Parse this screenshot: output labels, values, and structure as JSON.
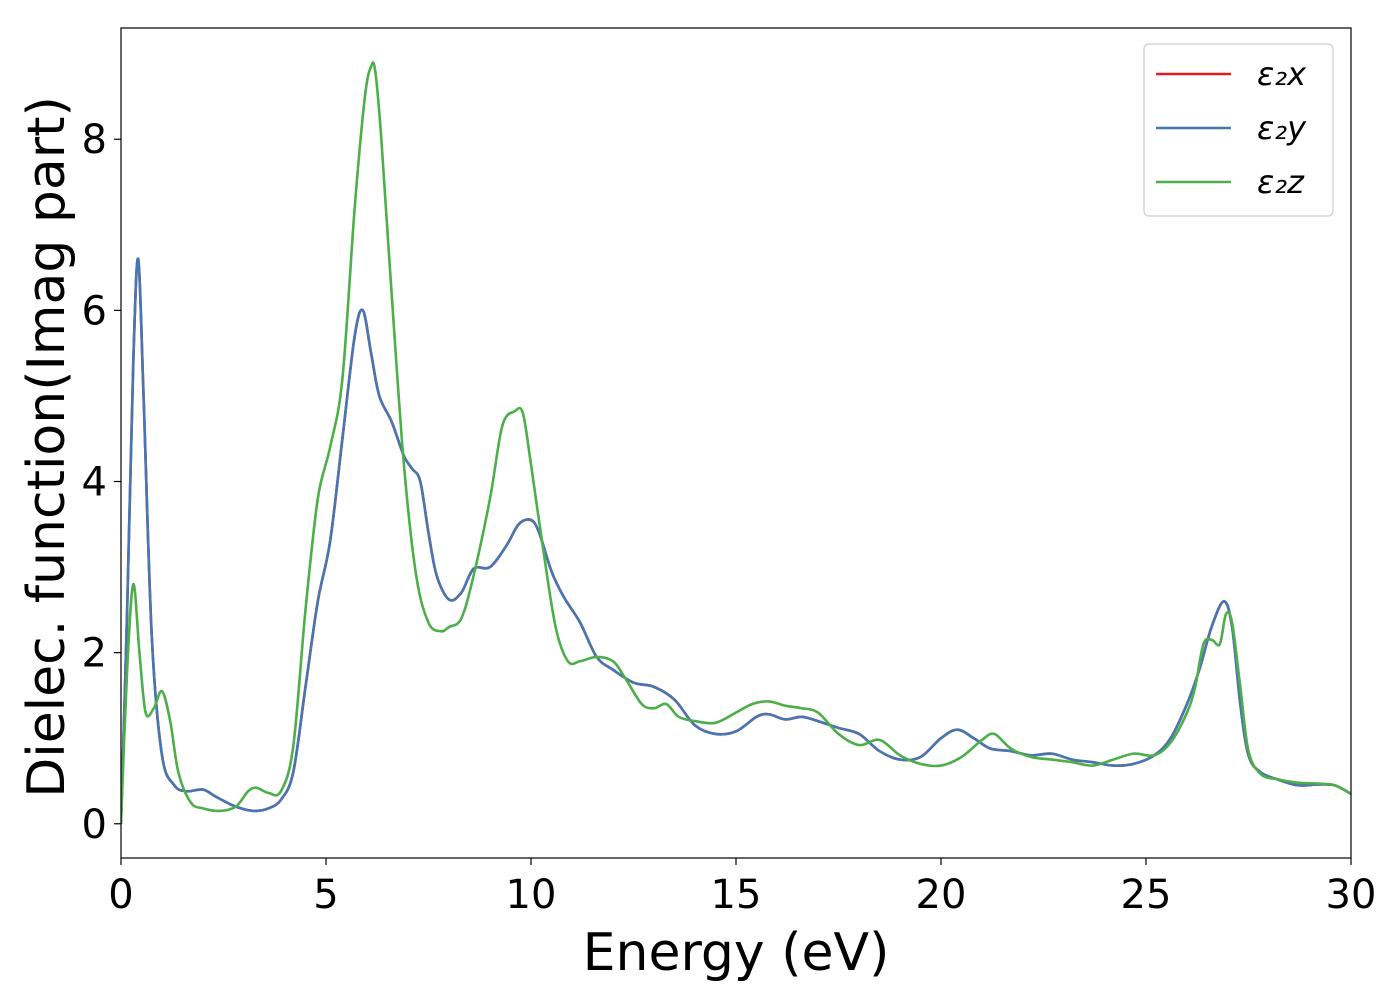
{
  "chart_data": {
    "type": "line",
    "title": "",
    "xlabel": "Energy (eV)",
    "ylabel": "Dielec. function(Imag part)",
    "xlim": [
      0,
      30
    ],
    "ylim": [
      -0.4,
      9.3
    ],
    "xticks": [
      0,
      5,
      10,
      15,
      20,
      25,
      30
    ],
    "yticks": [
      0,
      2,
      4,
      6,
      8
    ],
    "grid": false,
    "legend_position": "top-right",
    "series": [
      {
        "name": "ε₂x",
        "color": "#e41a1c",
        "x": [
          0,
          0.15,
          0.3,
          0.42,
          0.55,
          0.75,
          1.0,
          1.3,
          1.6,
          2.0,
          2.3,
          2.7,
          3.0,
          3.3,
          3.6,
          3.9,
          4.2,
          4.5,
          4.8,
          5.1,
          5.4,
          5.7,
          5.9,
          6.1,
          6.3,
          6.6,
          6.9,
          7.1,
          7.3,
          7.5,
          7.7,
          8.0,
          8.3,
          8.6,
          9.0,
          9.4,
          9.7,
          10.0,
          10.2,
          10.5,
          10.8,
          11.2,
          11.6,
          12.0,
          12.5,
          13.0,
          13.5,
          14.0,
          14.5,
          15.0,
          15.5,
          15.8,
          16.2,
          16.6,
          17.0,
          17.5,
          18.0,
          18.5,
          19.0,
          19.5,
          20.0,
          20.4,
          20.8,
          21.2,
          21.7,
          22.2,
          22.7,
          23.2,
          23.7,
          24.2,
          24.7,
          25.2,
          25.6,
          26.0,
          26.3,
          26.6,
          26.9,
          27.1,
          27.3,
          27.5,
          27.8,
          28.2,
          28.7,
          29.2,
          29.6,
          30.0
        ],
        "y": [
          0.0,
          2.5,
          5.4,
          6.6,
          5.0,
          2.2,
          0.8,
          0.45,
          0.38,
          0.4,
          0.32,
          0.22,
          0.17,
          0.15,
          0.18,
          0.28,
          0.6,
          1.6,
          2.6,
          3.3,
          4.5,
          5.7,
          6.0,
          5.5,
          5.0,
          4.7,
          4.3,
          4.15,
          4.0,
          3.4,
          2.9,
          2.62,
          2.7,
          2.98,
          3.0,
          3.25,
          3.5,
          3.55,
          3.4,
          2.95,
          2.65,
          2.35,
          1.95,
          1.8,
          1.65,
          1.6,
          1.45,
          1.15,
          1.05,
          1.08,
          1.25,
          1.28,
          1.22,
          1.25,
          1.2,
          1.12,
          1.05,
          0.85,
          0.75,
          0.78,
          1.0,
          1.1,
          1.0,
          0.88,
          0.85,
          0.8,
          0.82,
          0.75,
          0.72,
          0.68,
          0.7,
          0.8,
          1.0,
          1.4,
          1.8,
          2.3,
          2.6,
          2.3,
          1.4,
          0.8,
          0.6,
          0.52,
          0.45,
          0.46,
          0.45,
          0.35
        ]
      },
      {
        "name": "ε₂y",
        "color": "#4477b4",
        "x": [
          0,
          0.15,
          0.3,
          0.42,
          0.55,
          0.75,
          1.0,
          1.3,
          1.6,
          2.0,
          2.3,
          2.7,
          3.0,
          3.3,
          3.6,
          3.9,
          4.2,
          4.5,
          4.8,
          5.1,
          5.4,
          5.7,
          5.9,
          6.1,
          6.3,
          6.6,
          6.9,
          7.1,
          7.3,
          7.5,
          7.7,
          8.0,
          8.3,
          8.6,
          9.0,
          9.4,
          9.7,
          10.0,
          10.2,
          10.5,
          10.8,
          11.2,
          11.6,
          12.0,
          12.5,
          13.0,
          13.5,
          14.0,
          14.5,
          15.0,
          15.5,
          15.8,
          16.2,
          16.6,
          17.0,
          17.5,
          18.0,
          18.5,
          19.0,
          19.5,
          20.0,
          20.4,
          20.8,
          21.2,
          21.7,
          22.2,
          22.7,
          23.2,
          23.7,
          24.2,
          24.7,
          25.2,
          25.6,
          26.0,
          26.3,
          26.6,
          26.9,
          27.1,
          27.3,
          27.5,
          27.8,
          28.2,
          28.7,
          29.2,
          29.6,
          30.0
        ],
        "y": [
          0.0,
          2.5,
          5.4,
          6.6,
          5.0,
          2.2,
          0.8,
          0.45,
          0.38,
          0.4,
          0.32,
          0.22,
          0.17,
          0.15,
          0.18,
          0.28,
          0.6,
          1.6,
          2.6,
          3.3,
          4.5,
          5.7,
          6.0,
          5.5,
          5.0,
          4.7,
          4.3,
          4.15,
          4.0,
          3.4,
          2.9,
          2.62,
          2.7,
          2.98,
          3.0,
          3.25,
          3.5,
          3.55,
          3.4,
          2.95,
          2.65,
          2.35,
          1.95,
          1.8,
          1.65,
          1.6,
          1.45,
          1.15,
          1.05,
          1.08,
          1.25,
          1.28,
          1.22,
          1.25,
          1.2,
          1.12,
          1.05,
          0.85,
          0.75,
          0.78,
          1.0,
          1.1,
          1.0,
          0.88,
          0.85,
          0.8,
          0.82,
          0.75,
          0.72,
          0.68,
          0.7,
          0.8,
          1.0,
          1.4,
          1.8,
          2.3,
          2.6,
          2.3,
          1.4,
          0.8,
          0.6,
          0.52,
          0.45,
          0.46,
          0.45,
          0.35
        ]
      },
      {
        "name": "ε₂z",
        "color": "#4daf4a",
        "x": [
          0,
          0.15,
          0.3,
          0.45,
          0.6,
          0.8,
          1.0,
          1.2,
          1.4,
          1.7,
          2.0,
          2.4,
          2.8,
          3.1,
          3.3,
          3.6,
          3.9,
          4.2,
          4.5,
          4.8,
          5.1,
          5.4,
          5.7,
          5.95,
          6.1,
          6.2,
          6.35,
          6.6,
          6.9,
          7.2,
          7.5,
          7.8,
          8.0,
          8.3,
          8.6,
          9.0,
          9.3,
          9.6,
          9.8,
          10.0,
          10.3,
          10.6,
          10.9,
          11.2,
          11.6,
          12.0,
          12.3,
          12.7,
          13.0,
          13.3,
          13.6,
          14.0,
          14.5,
          15.0,
          15.4,
          15.8,
          16.2,
          16.6,
          17.0,
          17.5,
          18.0,
          18.5,
          19.0,
          19.5,
          20.0,
          20.5,
          21.0,
          21.3,
          21.7,
          22.2,
          22.7,
          23.2,
          23.7,
          24.2,
          24.7,
          25.2,
          25.6,
          26.0,
          26.2,
          26.4,
          26.6,
          26.8,
          26.95,
          27.1,
          27.3,
          27.5,
          27.8,
          28.2,
          28.7,
          29.2,
          29.6,
          30.0
        ],
        "y": [
          0.0,
          1.8,
          2.8,
          2.0,
          1.3,
          1.35,
          1.55,
          1.2,
          0.6,
          0.25,
          0.18,
          0.15,
          0.2,
          0.38,
          0.42,
          0.36,
          0.38,
          0.9,
          2.5,
          3.8,
          4.4,
          5.2,
          7.2,
          8.5,
          8.85,
          8.8,
          8.0,
          6.2,
          4.2,
          2.9,
          2.35,
          2.25,
          2.3,
          2.4,
          2.9,
          3.8,
          4.65,
          4.82,
          4.8,
          4.2,
          3.2,
          2.3,
          1.9,
          1.9,
          1.95,
          1.9,
          1.7,
          1.4,
          1.35,
          1.4,
          1.25,
          1.2,
          1.18,
          1.3,
          1.4,
          1.43,
          1.38,
          1.35,
          1.3,
          1.05,
          0.92,
          0.98,
          0.8,
          0.7,
          0.68,
          0.78,
          0.98,
          1.05,
          0.88,
          0.78,
          0.75,
          0.72,
          0.68,
          0.75,
          0.82,
          0.8,
          0.95,
          1.3,
          1.6,
          2.1,
          2.15,
          2.1,
          2.45,
          2.35,
          1.6,
          0.85,
          0.58,
          0.52,
          0.48,
          0.47,
          0.45,
          0.35
        ]
      }
    ]
  }
}
